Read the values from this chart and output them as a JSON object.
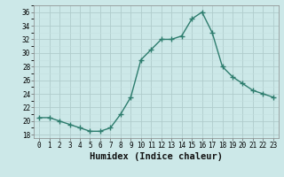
{
  "x": [
    0,
    1,
    2,
    3,
    4,
    5,
    6,
    7,
    8,
    9,
    10,
    11,
    12,
    13,
    14,
    15,
    16,
    17,
    18,
    19,
    20,
    21,
    22,
    23
  ],
  "y": [
    20.5,
    20.5,
    20.0,
    19.5,
    19.0,
    18.5,
    18.5,
    19.0,
    21.0,
    23.5,
    29.0,
    30.5,
    32.0,
    32.0,
    32.5,
    35.0,
    36.0,
    33.0,
    28.0,
    26.5,
    25.5,
    24.5,
    24.0,
    23.5
  ],
  "line_color": "#2e7d6e",
  "marker": "D",
  "marker_size": 2.0,
  "bg_color": "#cce8e8",
  "grid_major_color": "#b0cccc",
  "grid_minor_color": "#c4e0e0",
  "xlabel": "Humidex (Indice chaleur)",
  "xlim": [
    -0.5,
    23.5
  ],
  "ylim": [
    17.5,
    37.0
  ],
  "yticks": [
    18,
    20,
    22,
    24,
    26,
    28,
    30,
    32,
    34,
    36
  ],
  "xticks": [
    0,
    1,
    2,
    3,
    4,
    5,
    6,
    7,
    8,
    9,
    10,
    11,
    12,
    13,
    14,
    15,
    16,
    17,
    18,
    19,
    20,
    21,
    22,
    23
  ],
  "tick_fontsize": 5.5,
  "label_fontsize": 7.5,
  "line_width": 1.0
}
